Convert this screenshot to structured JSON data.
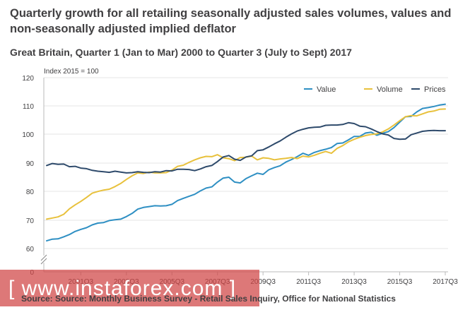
{
  "page": {
    "title": "Quarterly growth for all retailing seasonally adjusted sales volumes, values and non-seasonally adjusted implied deflator",
    "subtitle": "Great Britain, Quarter 1 (Jan to Mar) 2000 to Quarter 3 (July to Sept) 2017",
    "source": "Source: Source: Monthly Business Survey - Retail Sales Inquiry, Office for  National Statistics",
    "watermark": "[ www.instaforex.com ]"
  },
  "colors": {
    "value": "#2e8fc3",
    "volume": "#e8c13c",
    "prices": "#2e4a6b",
    "grid": "#e4e4e4",
    "watermark": "#d04444"
  },
  "chart_data": {
    "type": "line",
    "index_label": "Index 2015 = 100",
    "ylim": [
      0,
      120
    ],
    "y_ticks": [
      "0",
      "60",
      "70",
      "80",
      "90",
      "100",
      "110",
      "120"
    ],
    "y_axis_break": true,
    "grid": true,
    "legend_position": "top-right",
    "x_tick_labels": [
      "2001Q3",
      "2003Q3",
      "2005Q3",
      "2007Q3",
      "2009Q3",
      "2011Q3",
      "2013Q3",
      "2015Q3",
      "2017Q3"
    ],
    "x_tick_quarters": [
      "2001Q3",
      "2003Q3",
      "2005Q3",
      "2007Q3",
      "2009Q3",
      "2011Q3",
      "2013Q3",
      "2015Q3",
      "2017Q3"
    ],
    "x_start": "2000Q1",
    "x_end": "2017Q3",
    "series": [
      {
        "name": "Value",
        "color": "#2e8fc3",
        "values": [
          62.7,
          63.3,
          63.4,
          64.1,
          64.9,
          66.0,
          66.7,
          67.3,
          68.3,
          68.9,
          69.1,
          69.8,
          70.1,
          70.3,
          71.2,
          72.3,
          73.8,
          74.4,
          74.7,
          75.0,
          74.9,
          75.0,
          75.5,
          76.8,
          77.6,
          78.3,
          79.0,
          80.2,
          81.2,
          81.6,
          83.3,
          84.7,
          85.0,
          83.3,
          83.0,
          84.5,
          85.5,
          86.4,
          86.0,
          87.6,
          88.4,
          89.0,
          90.3,
          91.2,
          92.2,
          93.4,
          92.7,
          93.7,
          94.3,
          94.8,
          95.4,
          96.8,
          97.0,
          98.1,
          99.3,
          99.3,
          100.5,
          100.8,
          99.7,
          100.4,
          101.0,
          102.4,
          104.3,
          106.2,
          106.3,
          107.9,
          109.1,
          109.4,
          109.8,
          110.3,
          110.6
        ]
      },
      {
        "name": "Volume",
        "color": "#e8c13c",
        "values": [
          70.3,
          70.7,
          71.1,
          72.0,
          73.9,
          75.3,
          76.5,
          77.9,
          79.4,
          80.0,
          80.5,
          80.8,
          81.7,
          82.8,
          84.2,
          85.5,
          86.5,
          86.3,
          86.8,
          86.5,
          86.5,
          86.6,
          87.5,
          88.8,
          89.2,
          90.2,
          91.1,
          91.8,
          92.3,
          92.2,
          92.9,
          91.8,
          91.5,
          90.8,
          91.9,
          92.0,
          92.4,
          91.1,
          91.8,
          91.6,
          91.1,
          91.4,
          91.6,
          91.9,
          91.5,
          92.4,
          92.1,
          92.7,
          93.4,
          94.0,
          93.4,
          95.1,
          96.1,
          97.4,
          98.3,
          99.0,
          99.6,
          100.0,
          100.2,
          100.9,
          101.9,
          103.3,
          104.8,
          106.2,
          106.6,
          106.5,
          107.2,
          107.9,
          108.2,
          108.8,
          108.9
        ]
      },
      {
        "name": "Prices",
        "color": "#2e4a6b",
        "values": [
          89.1,
          89.8,
          89.5,
          89.6,
          88.7,
          88.8,
          88.2,
          88.0,
          87.4,
          87.1,
          86.9,
          86.7,
          87.1,
          86.8,
          86.5,
          86.6,
          86.9,
          86.7,
          86.6,
          86.9,
          86.8,
          87.3,
          87.2,
          87.8,
          87.8,
          87.7,
          87.3,
          87.9,
          88.7,
          89.1,
          90.5,
          92.1,
          92.6,
          91.3,
          90.9,
          92.1,
          92.5,
          94.3,
          94.6,
          95.6,
          96.7,
          97.7,
          99.0,
          100.2,
          101.2,
          101.8,
          102.3,
          102.5,
          102.6,
          103.2,
          103.3,
          103.3,
          103.5,
          104.1,
          103.8,
          102.9,
          102.7,
          101.9,
          101.0,
          100.2,
          99.8,
          98.6,
          98.3,
          98.4,
          99.9,
          100.5,
          101.1,
          101.3,
          101.4,
          101.3,
          101.3
        ]
      }
    ]
  }
}
